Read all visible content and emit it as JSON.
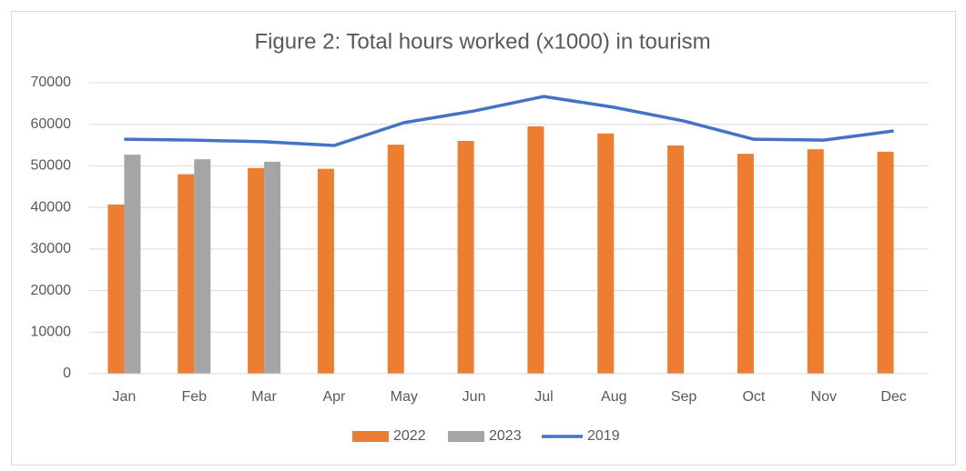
{
  "chart_data": {
    "type": "bar",
    "title": "Figure 2: Total hours worked (x1000) in tourism",
    "categories": [
      "Jan",
      "Feb",
      "Mar",
      "Apr",
      "May",
      "Jun",
      "Jul",
      "Aug",
      "Sep",
      "Oct",
      "Nov",
      "Dec"
    ],
    "series": [
      {
        "name": "2022",
        "type": "bar",
        "color": "#ed7d31",
        "values": [
          40700,
          48000,
          49500,
          49300,
          55100,
          56000,
          59500,
          57800,
          54900,
          52900,
          54000,
          53400
        ]
      },
      {
        "name": "2023",
        "type": "bar",
        "color": "#a5a5a5",
        "values": [
          52700,
          51600,
          51000,
          null,
          null,
          null,
          null,
          null,
          null,
          null,
          null,
          null
        ]
      },
      {
        "name": "2019",
        "type": "line",
        "color": "#4472c4",
        "values": [
          56400,
          56200,
          55800,
          54900,
          60400,
          63200,
          66700,
          64100,
          60800,
          56400,
          56200,
          58400
        ]
      }
    ],
    "ylim": [
      0,
      70000
    ],
    "yticks": [
      0,
      10000,
      20000,
      30000,
      40000,
      50000,
      60000,
      70000
    ],
    "grid": true,
    "legend": "bottom"
  }
}
